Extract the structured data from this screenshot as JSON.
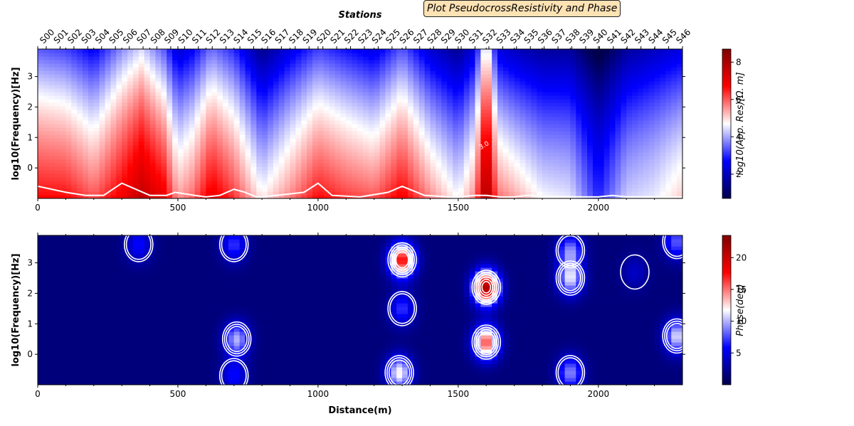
{
  "chart_data": [
    {
      "type": "heatmap",
      "panel": "resistivity",
      "title": "Plot PseudocrossResistivity and Phase",
      "top_axis_label": "Stations",
      "stations": [
        "S00",
        "S01",
        "S02",
        "S03",
        "S04",
        "S05",
        "S06",
        "S07",
        "S08",
        "S09",
        "S10",
        "S11",
        "S12",
        "S13",
        "S14",
        "S15",
        "S16",
        "S17",
        "S18",
        "S19",
        "S20",
        "S21",
        "S22",
        "S23",
        "S24",
        "S25",
        "S26",
        "S27",
        "S28",
        "S29",
        "S30",
        "S31",
        "S32",
        "S33",
        "S34",
        "S35",
        "S36",
        "S37",
        "S38",
        "S39",
        "S40",
        "S41",
        "S42",
        "S43",
        "S44",
        "S45",
        "S46"
      ],
      "xlim": [
        0,
        2300
      ],
      "xticks": [
        0,
        500,
        1000,
        1500,
        2000
      ],
      "ylabel": "log10(Frequency)[Hz]",
      "ylim": [
        -1,
        3.9
      ],
      "yticks": [
        0,
        1,
        2,
        3
      ],
      "colorbar_label": "log10(App. Res)[Ω. m]",
      "colorbar_ticks": [
        2,
        4,
        6,
        8
      ],
      "colorbar_range": [
        0.7,
        8.7
      ],
      "colormap": [
        "#00004c",
        "#0000ff",
        "#ffffff",
        "#ff0000",
        "#7f0000"
      ],
      "contour_label": "3.0",
      "contours": [
        {
          "level": 3.0,
          "x": [
            0,
            100,
            170,
            235,
            300,
            400,
            460,
            490,
            560,
            600,
            650,
            700,
            740,
            780,
            800,
            850,
            950,
            1000,
            1050,
            1150,
            1250,
            1300,
            1380,
            1470,
            1500,
            1560,
            1600,
            1650,
            1700,
            1750,
            1800,
            1850,
            1900,
            1950,
            2000,
            2050,
            2100,
            2150,
            2200,
            2300
          ],
          "y": [
            -0.6,
            -0.8,
            -0.9,
            -0.9,
            -0.5,
            -0.9,
            -0.9,
            -0.8,
            -0.9,
            -0.95,
            -0.9,
            -0.7,
            -0.8,
            -0.95,
            -0.95,
            -0.9,
            -0.8,
            -0.5,
            -0.9,
            -0.95,
            -0.8,
            -0.6,
            -0.9,
            -0.95,
            -0.95,
            -0.9,
            -0.9,
            -0.95,
            -0.95,
            -0.9,
            -0.95,
            -0.95,
            -0.95,
            -0.95,
            -0.95,
            -0.9,
            -0.95,
            -0.95,
            -0.95,
            -0.95
          ]
        }
      ],
      "field_samples": {
        "x": [
          0,
          100,
          200,
          300,
          370,
          450,
          500,
          550,
          620,
          700,
          800,
          900,
          1000,
          1100,
          1200,
          1300,
          1400,
          1500,
          1560,
          1600,
          1640,
          1700,
          1800,
          1900,
          2000,
          2100,
          2200,
          2300
        ],
        "surface": [
          5.2,
          5.0,
          4.4,
          5.6,
          6.2,
          5.2,
          4.0,
          4.4,
          5.4,
          4.8,
          3.2,
          4.2,
          5.0,
          4.6,
          4.2,
          5.2,
          4.0,
          3.3,
          4.2,
          7.0,
          4.2,
          3.8,
          3.4,
          3.4,
          2.2,
          3.4,
          3.8,
          4.2
        ],
        "deep": [
          6.8,
          6.8,
          6.2,
          7.0,
          7.8,
          7.2,
          5.6,
          6.0,
          7.2,
          6.4,
          5.0,
          5.8,
          6.8,
          6.4,
          6.2,
          7.0,
          5.8,
          4.8,
          5.8,
          8.5,
          6.0,
          5.6,
          4.8,
          4.6,
          3.0,
          4.4,
          4.6,
          5.2
        ]
      }
    },
    {
      "type": "heatmap",
      "panel": "phase",
      "xlabel": "Distance(m)",
      "ylabel": "log10(Frequency)[Hz]",
      "xlim": [
        0,
        2300
      ],
      "xticks": [
        0,
        500,
        1000,
        1500,
        2000
      ],
      "ylim": [
        -1,
        3.9
      ],
      "yticks": [
        0,
        1,
        2,
        3
      ],
      "colorbar_label": "Phase(deg)",
      "colorbar_ticks": [
        5,
        10,
        15,
        20
      ],
      "colorbar_range": [
        0,
        23.5
      ],
      "colormap": [
        "#00004c",
        "#0000ff",
        "#ffffff",
        "#ff0000",
        "#7f0000"
      ],
      "background_value": 1.5,
      "anomalies": [
        {
          "x": 1300,
          "y": 3.1,
          "value": 18
        },
        {
          "x": 1300,
          "y": 1.5,
          "value": 7
        },
        {
          "x": 1600,
          "y": 2.2,
          "value": 22
        },
        {
          "x": 1600,
          "y": 0.4,
          "value": 16
        },
        {
          "x": 1900,
          "y": 2.5,
          "value": 11
        },
        {
          "x": 1900,
          "y": 3.4,
          "value": 9
        },
        {
          "x": 710,
          "y": 0.5,
          "value": 10
        },
        {
          "x": 700,
          "y": 3.6,
          "value": 7
        },
        {
          "x": 2280,
          "y": 0.6,
          "value": 11
        },
        {
          "x": 2280,
          "y": 3.7,
          "value": 8
        },
        {
          "x": 360,
          "y": 3.6,
          "value": 6
        },
        {
          "x": 1290,
          "y": -0.6,
          "value": 12
        },
        {
          "x": 1900,
          "y": -0.6,
          "value": 9
        },
        {
          "x": 700,
          "y": -0.7,
          "value": 6
        },
        {
          "x": 2130,
          "y": 2.7,
          "value": 4
        }
      ]
    }
  ]
}
